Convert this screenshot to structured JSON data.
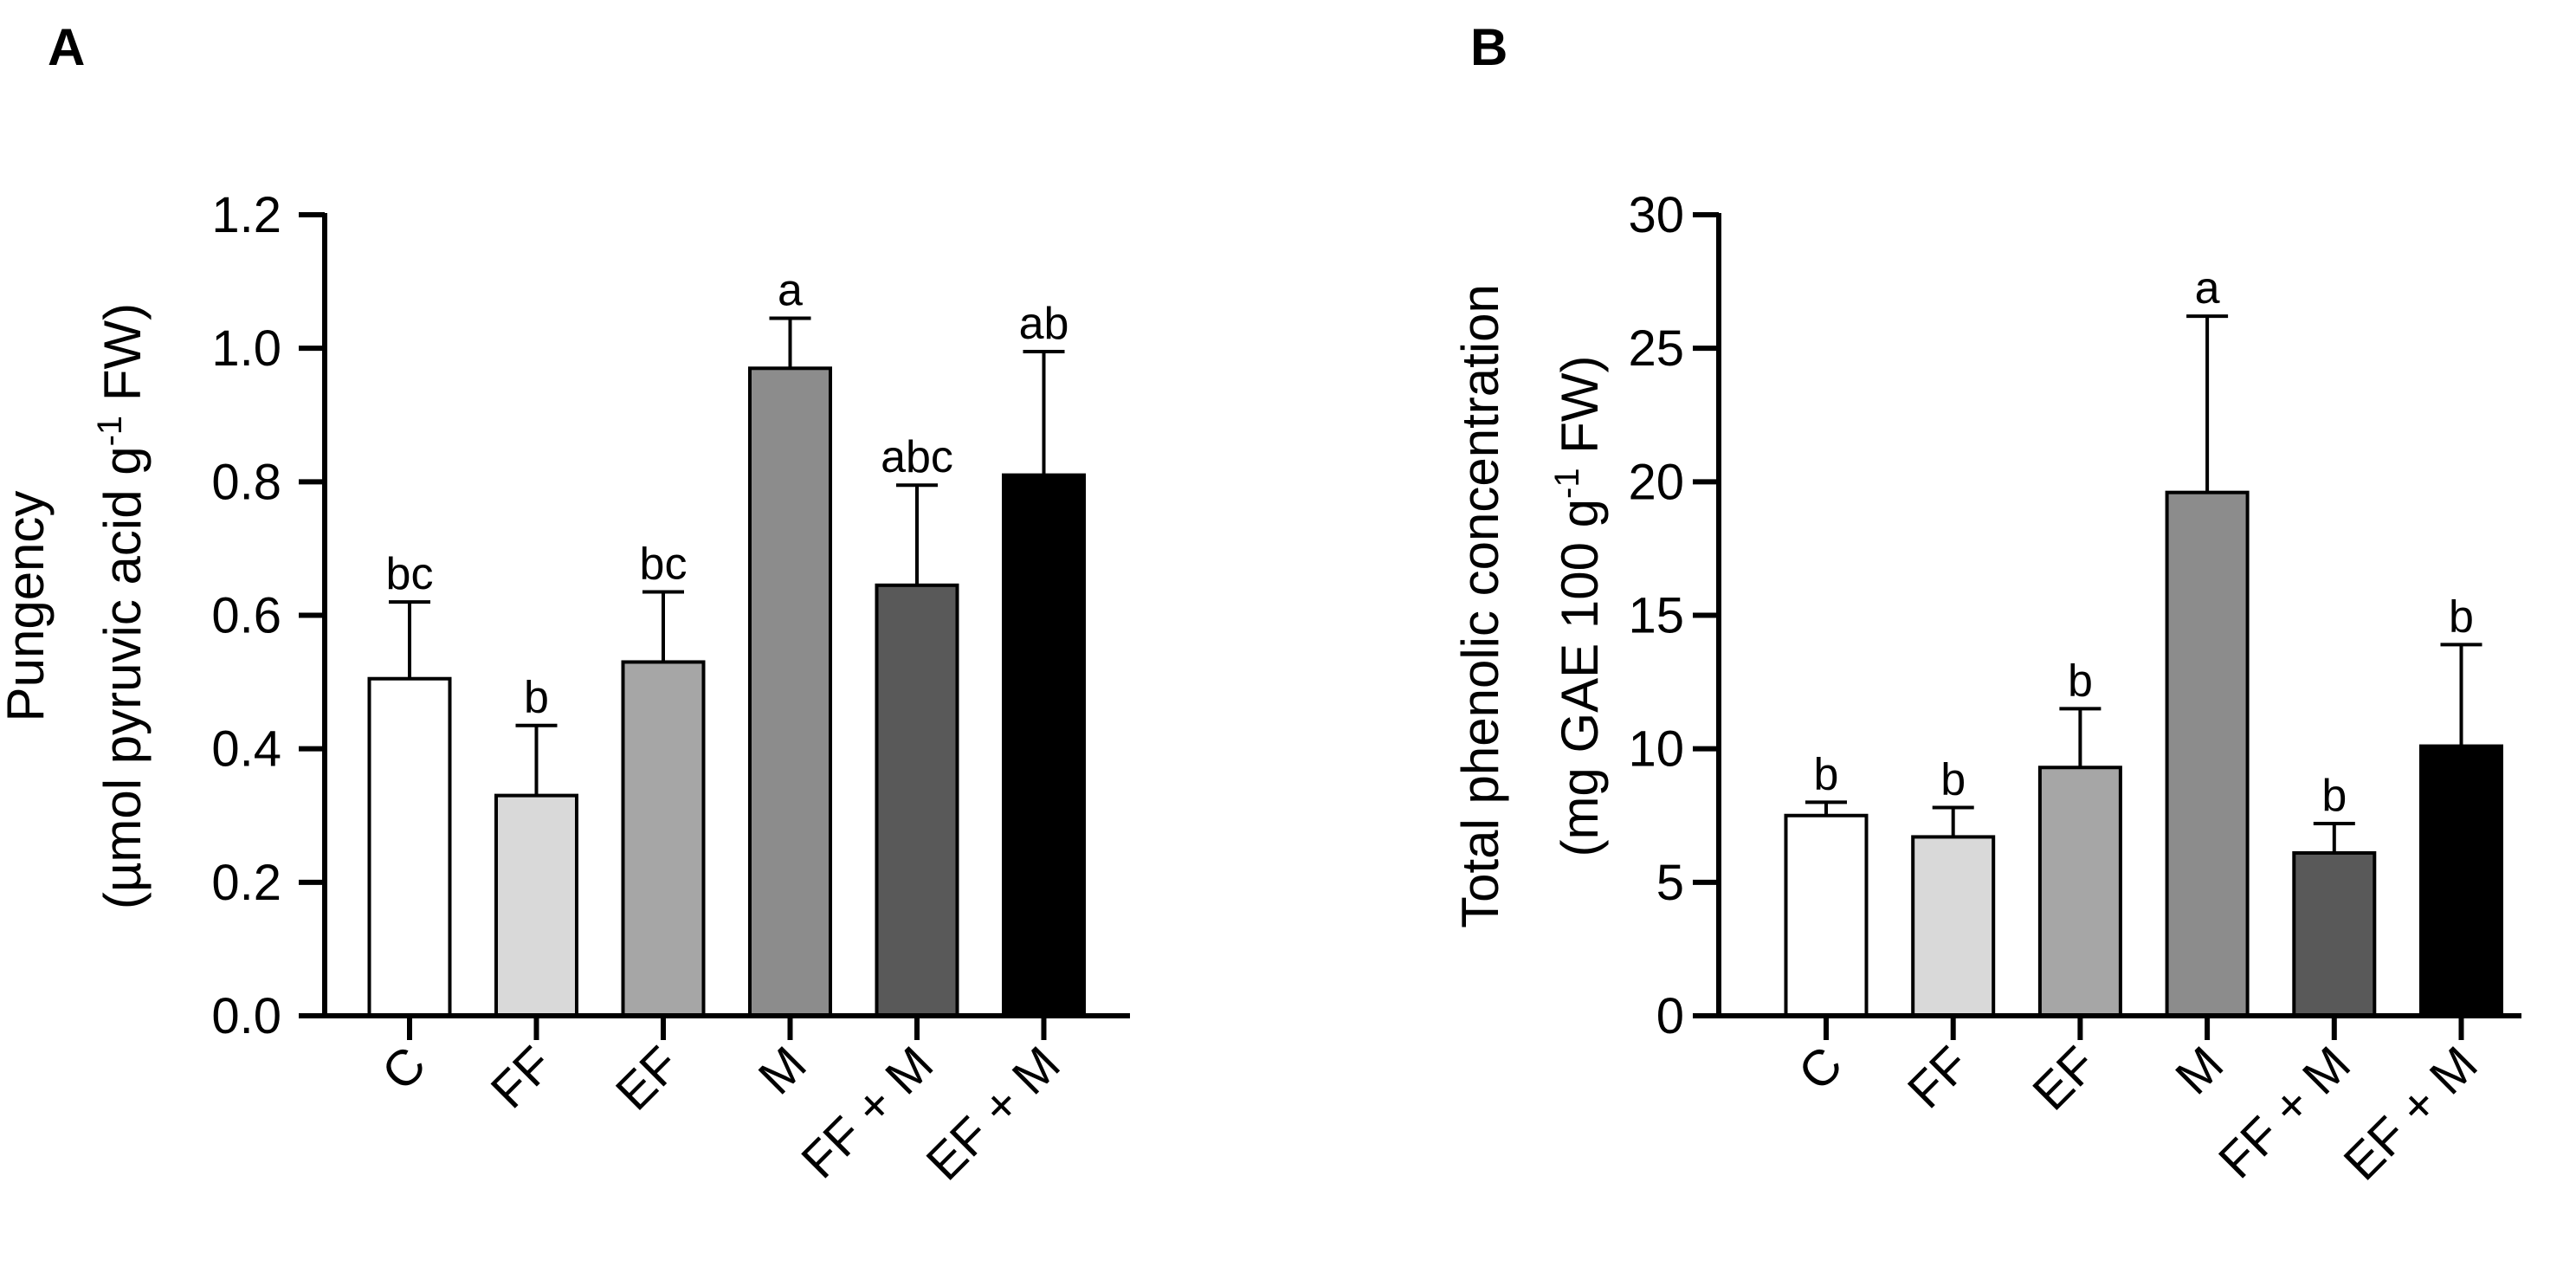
{
  "chart_data": [
    {
      "panel": "A",
      "type": "bar",
      "categories": [
        "C",
        "FF",
        "EF",
        "M",
        "FF + M",
        "EF + M"
      ],
      "values": [
        0.505,
        0.33,
        0.53,
        0.97,
        0.645,
        0.81
      ],
      "errors": [
        0.115,
        0.105,
        0.105,
        0.075,
        0.15,
        0.185
      ],
      "significance": [
        "bc",
        "b",
        "bc",
        "a",
        "abc",
        "ab"
      ],
      "bar_colors": [
        "#ffffff",
        "#d9d9d9",
        "#a6a6a6",
        "#8c8c8c",
        "#595959",
        "#000000"
      ],
      "ylabel_line1": "Pungency",
      "ylabel_line2_pre": "(µmol pyruvic acid g",
      "ylabel_sup": "-1",
      "ylabel_line2_post": " FW)",
      "ylim": [
        0,
        1.2
      ],
      "yticks": [
        "0.0",
        "0.2",
        "0.4",
        "0.6",
        "0.8",
        "1.0",
        "1.2"
      ],
      "ytick_values": [
        0,
        0.2,
        0.4,
        0.6,
        0.8,
        1.0,
        1.2
      ]
    },
    {
      "panel": "B",
      "type": "bar",
      "categories": [
        "C",
        "FF",
        "EF",
        "M",
        "FF + M",
        "EF + M"
      ],
      "values": [
        7.5,
        6.7,
        9.3,
        19.6,
        6.1,
        10.1
      ],
      "errors": [
        0.5,
        1.1,
        2.2,
        6.6,
        1.1,
        3.8
      ],
      "significance": [
        "b",
        "b",
        "b",
        "a",
        "b",
        "b"
      ],
      "bar_colors": [
        "#ffffff",
        "#d9d9d9",
        "#a6a6a6",
        "#8c8c8c",
        "#595959",
        "#000000"
      ],
      "ylabel_line1": "Total phenolic concentration",
      "ylabel_line2_pre": "(mg GAE 100 g",
      "ylabel_sup": "-1",
      "ylabel_line2_post": " FW)",
      "ylim": [
        0,
        30
      ],
      "yticks": [
        "0",
        "5",
        "10",
        "15",
        "20",
        "25",
        "30"
      ],
      "ytick_values": [
        0,
        5,
        10,
        15,
        20,
        25,
        30
      ]
    }
  ]
}
